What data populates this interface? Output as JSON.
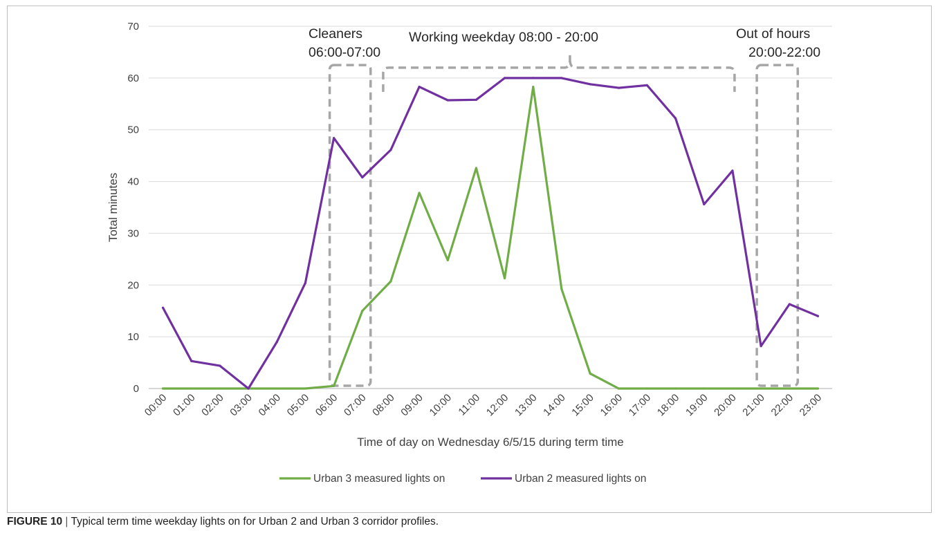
{
  "caption": {
    "label": "FIGURE 10",
    "separator": " | ",
    "text": "Typical term time weekday lights on for Urban 2 and Urban 3 corridor profiles."
  },
  "chart_data": {
    "type": "line",
    "xlabel": "Time of day on Wednesday 6/5/15 during term time",
    "ylabel": "Total minutes",
    "ylim": [
      0,
      70
    ],
    "yticks": [
      0,
      10,
      20,
      30,
      40,
      50,
      60,
      70
    ],
    "grid": "horizontal",
    "legend_position": "bottom",
    "x": [
      "00:00",
      "01:00",
      "02:00",
      "03:00",
      "04:00",
      "05:00",
      "06:00",
      "07:00",
      "08:00",
      "09:00",
      "10:00",
      "11:00",
      "12:00",
      "13:00",
      "14:00",
      "15:00",
      "16:00",
      "17:00",
      "18:00",
      "19:00",
      "20:00",
      "21:00",
      "22:00",
      "23:00"
    ],
    "series": [
      {
        "name": "Urban 3 measured lights on",
        "color": "#70ad47",
        "values": [
          0,
          0,
          0,
          0,
          0,
          0,
          0.5,
          15,
          20.7,
          37.8,
          24.8,
          42.6,
          21.3,
          58.3,
          19.2,
          2.9,
          0,
          0,
          0,
          0,
          0,
          0,
          0,
          0
        ]
      },
      {
        "name": "Urban 2 measured lights on",
        "color": "#7030a0",
        "values": [
          15.6,
          5.3,
          4.4,
          0,
          9,
          20.4,
          48.4,
          40.8,
          46.1,
          58.3,
          55.7,
          55.8,
          60,
          60,
          60,
          58.8,
          58.1,
          58.6,
          52.2,
          35.6,
          42.1,
          8.2,
          16.3,
          14
        ]
      }
    ],
    "annotations": [
      {
        "id": "cleaners",
        "lines": [
          "Cleaners",
          "06:00-07:00"
        ],
        "kind": "box",
        "x_start": "06:00",
        "x_end": "07:00",
        "y_top": 62.5,
        "y_bottom": 0
      },
      {
        "id": "working",
        "lines": [
          "Working weekday 08:00 - 20:00"
        ],
        "kind": "brace",
        "x_start": "08:00",
        "x_end": "20:00",
        "y_brace": 62
      },
      {
        "id": "out-of-hours",
        "lines": [
          "Out of hours",
          "20:00-22:00"
        ],
        "kind": "box",
        "x_start": "21:00",
        "x_end": "22:00",
        "y_top": 62.5,
        "y_bottom": 0
      }
    ],
    "colors": {
      "axis": "#595959",
      "grid": "#d9d9d9",
      "annotation": "#a6a6a6",
      "text": "#404040"
    }
  }
}
